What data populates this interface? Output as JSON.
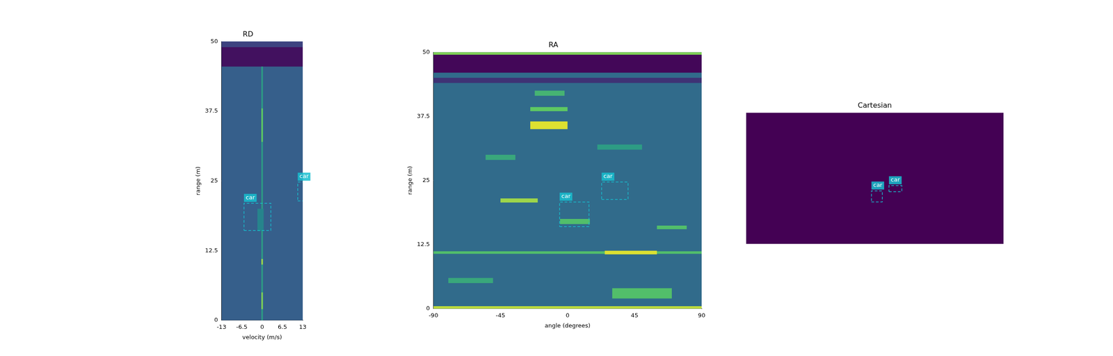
{
  "chart_data": [
    {
      "type": "heatmap",
      "title": "RD",
      "x_label": "velocity (m/s)",
      "y_label": "range (m)",
      "xlim": [
        -13,
        13
      ],
      "xticks": [
        -13,
        -6.5,
        0,
        6.5,
        13
      ],
      "ylim": [
        0,
        50
      ],
      "yticks": [
        0,
        12.5,
        25,
        37.5,
        50
      ],
      "grid": false,
      "color": "#17becf",
      "background_level": 0.3,
      "cells": [
        {
          "x": [
            -13,
            13
          ],
          "y": [
            45.5,
            49
          ],
          "level": 0.05
        },
        {
          "x": [
            -13,
            13
          ],
          "y": [
            49,
            50
          ],
          "level": 0.2
        },
        {
          "x": [
            -0.25,
            0.25
          ],
          "y": [
            0,
            45.5
          ],
          "level": 0.55
        },
        {
          "x": [
            -0.25,
            0.25
          ],
          "y": [
            32,
            38
          ],
          "level": 0.75
        },
        {
          "x": [
            -0.25,
            0.25
          ],
          "y": [
            10,
            11
          ],
          "level": 0.85
        },
        {
          "x": [
            -0.25,
            0.25
          ],
          "y": [
            2,
            5
          ],
          "level": 0.8
        },
        {
          "x": [
            -1.5,
            0.5
          ],
          "y": [
            16,
            20
          ],
          "level": 0.45
        }
      ],
      "boxes": [
        {
          "label": "car",
          "x": [
            -5.8,
            2.8
          ],
          "y": [
            16.1,
            21.0
          ]
        },
        {
          "label": "car",
          "x": [
            11.4,
            14.5
          ],
          "y": [
            21.4,
            24.8
          ]
        }
      ]
    },
    {
      "type": "heatmap",
      "title": "RA",
      "x_label": "angle (degrees)",
      "y_label": "range (m)",
      "xlim": [
        -90,
        90
      ],
      "xticks": [
        -90,
        -45,
        0,
        45,
        90
      ],
      "ylim": [
        0,
        50
      ],
      "yticks": [
        0,
        12.5,
        25,
        37.5,
        50
      ],
      "grid": false,
      "color": "#17becf",
      "background_level": 0.35,
      "cells": [
        {
          "x": [
            -90,
            90
          ],
          "y": [
            46,
            49.5
          ],
          "level": 0.02
        },
        {
          "x": [
            -90,
            90
          ],
          "y": [
            49.5,
            50
          ],
          "level": 0.8
        },
        {
          "x": [
            -90,
            90
          ],
          "y": [
            0,
            0.5
          ],
          "level": 0.9
        },
        {
          "x": [
            -90,
            90
          ],
          "y": [
            44,
            45
          ],
          "level": 0.15
        },
        {
          "x": [
            -90,
            90
          ],
          "y": [
            10.7,
            11.2
          ],
          "level": 0.7
        },
        {
          "x": [
            25,
            60
          ],
          "y": [
            10.6,
            11.3
          ],
          "level": 0.95
        },
        {
          "x": [
            -25,
            0
          ],
          "y": [
            35,
            36.5
          ],
          "level": 0.95
        },
        {
          "x": [
            -25,
            0
          ],
          "y": [
            38.5,
            39.3
          ],
          "level": 0.75
        },
        {
          "x": [
            -22,
            -2
          ],
          "y": [
            41.5,
            42.5
          ],
          "level": 0.65
        },
        {
          "x": [
            -45,
            -20
          ],
          "y": [
            20.7,
            21.5
          ],
          "level": 0.85
        },
        {
          "x": [
            -5,
            15
          ],
          "y": [
            16.5,
            17.5
          ],
          "level": 0.7
        },
        {
          "x": [
            -55,
            -35
          ],
          "y": [
            29,
            30
          ],
          "level": 0.6
        },
        {
          "x": [
            20,
            50
          ],
          "y": [
            31,
            32
          ],
          "level": 0.55
        },
        {
          "x": [
            30,
            70
          ],
          "y": [
            2,
            4
          ],
          "level": 0.7
        },
        {
          "x": [
            -80,
            -50
          ],
          "y": [
            5,
            6
          ],
          "level": 0.6
        },
        {
          "x": [
            60,
            80
          ],
          "y": [
            15.5,
            16.2
          ],
          "level": 0.7
        }
      ],
      "boxes": [
        {
          "label": "car",
          "x": [
            -5.3,
            14.4
          ],
          "y": [
            16.0,
            20.8
          ]
        },
        {
          "label": "car",
          "x": [
            22.9,
            40.6
          ],
          "y": [
            21.3,
            24.7
          ]
        }
      ]
    },
    {
      "type": "heatmap",
      "title": "Cartesian",
      "xlim": [
        -50,
        50
      ],
      "ylim": [
        0,
        50
      ],
      "tick_labels": false,
      "grid": false,
      "color": "#17becf",
      "background_level": 0.0,
      "cells": [],
      "boxes": [
        {
          "label": "car",
          "x": [
            -1.3,
            2.9
          ],
          "y": [
            16.0,
            20.2
          ]
        },
        {
          "label": "car",
          "x": [
            5.5,
            10.5
          ],
          "y": [
            19.9,
            22.2
          ]
        }
      ]
    }
  ]
}
